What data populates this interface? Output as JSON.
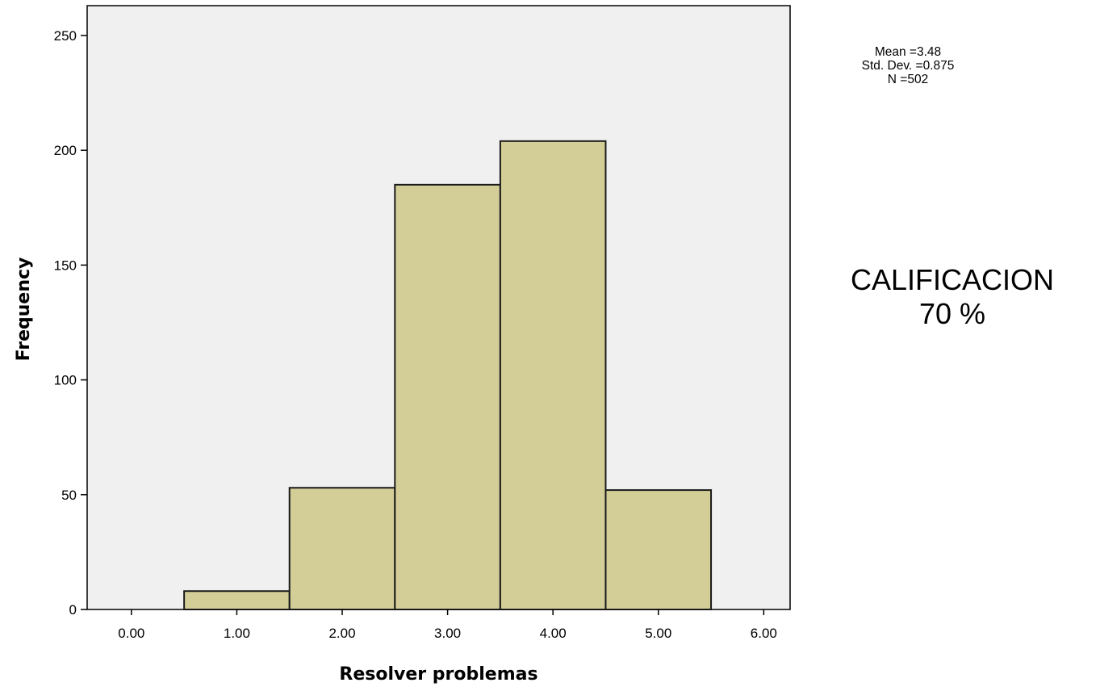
{
  "chart_data": {
    "type": "bar",
    "histogram": true,
    "bins": [
      {
        "x_start": 0.5,
        "x_end": 1.5,
        "value": 8
      },
      {
        "x_start": 1.5,
        "x_end": 2.5,
        "value": 53
      },
      {
        "x_start": 2.5,
        "x_end": 3.5,
        "value": 185
      },
      {
        "x_start": 3.5,
        "x_end": 4.5,
        "value": 204
      },
      {
        "x_start": 4.5,
        "x_end": 5.5,
        "value": 52
      }
    ],
    "xlabel": "Resolver problemas",
    "ylabel": "Frequency",
    "xlim": [
      -0.42,
      6.25
    ],
    "ylim": [
      0,
      263
    ],
    "x_ticks": [
      0,
      1,
      2,
      3,
      4,
      5,
      6
    ],
    "x_tick_labels": [
      "0.00",
      "1.00",
      "2.00",
      "3.00",
      "4.00",
      "5.00",
      "6.00"
    ],
    "y_ticks": [
      0,
      50,
      100,
      150,
      200,
      250
    ],
    "y_tick_labels": [
      "0",
      "50",
      "100",
      "150",
      "200",
      "250"
    ],
    "grid": false,
    "stats": {
      "mean": "Mean =3.48",
      "std_dev": "Std. Dev. =0.875",
      "n": "N =502"
    },
    "colors": {
      "bar_fill": "#d3ce98",
      "bar_stroke": "#1a1a1a",
      "plot_background": "#f0f0f0",
      "axis": "#000000"
    }
  },
  "annotation": {
    "line1": "CALIFICACION",
    "line2": "70 %"
  }
}
